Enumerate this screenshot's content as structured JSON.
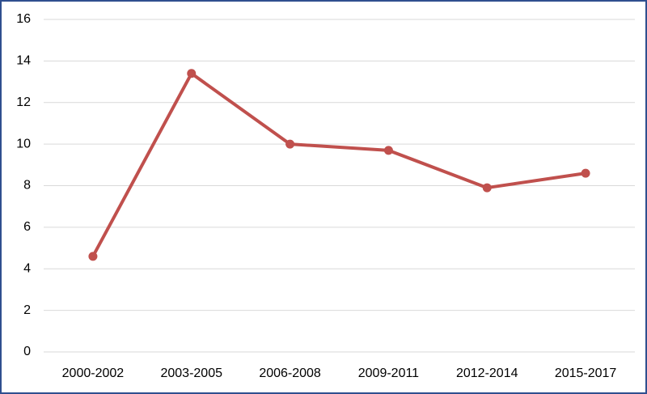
{
  "chart_data": {
    "type": "line",
    "categories": [
      "2000-2002",
      "2003-2005",
      "2006-2008",
      "2009-2011",
      "2012-2014",
      "2015-2017"
    ],
    "values": [
      4.6,
      13.4,
      10.0,
      9.7,
      7.9,
      8.6
    ],
    "color": "#c0504d",
    "ylim": [
      0,
      16
    ],
    "yticks": [
      0,
      2,
      4,
      6,
      8,
      10,
      12,
      14,
      16
    ],
    "grid": true
  }
}
